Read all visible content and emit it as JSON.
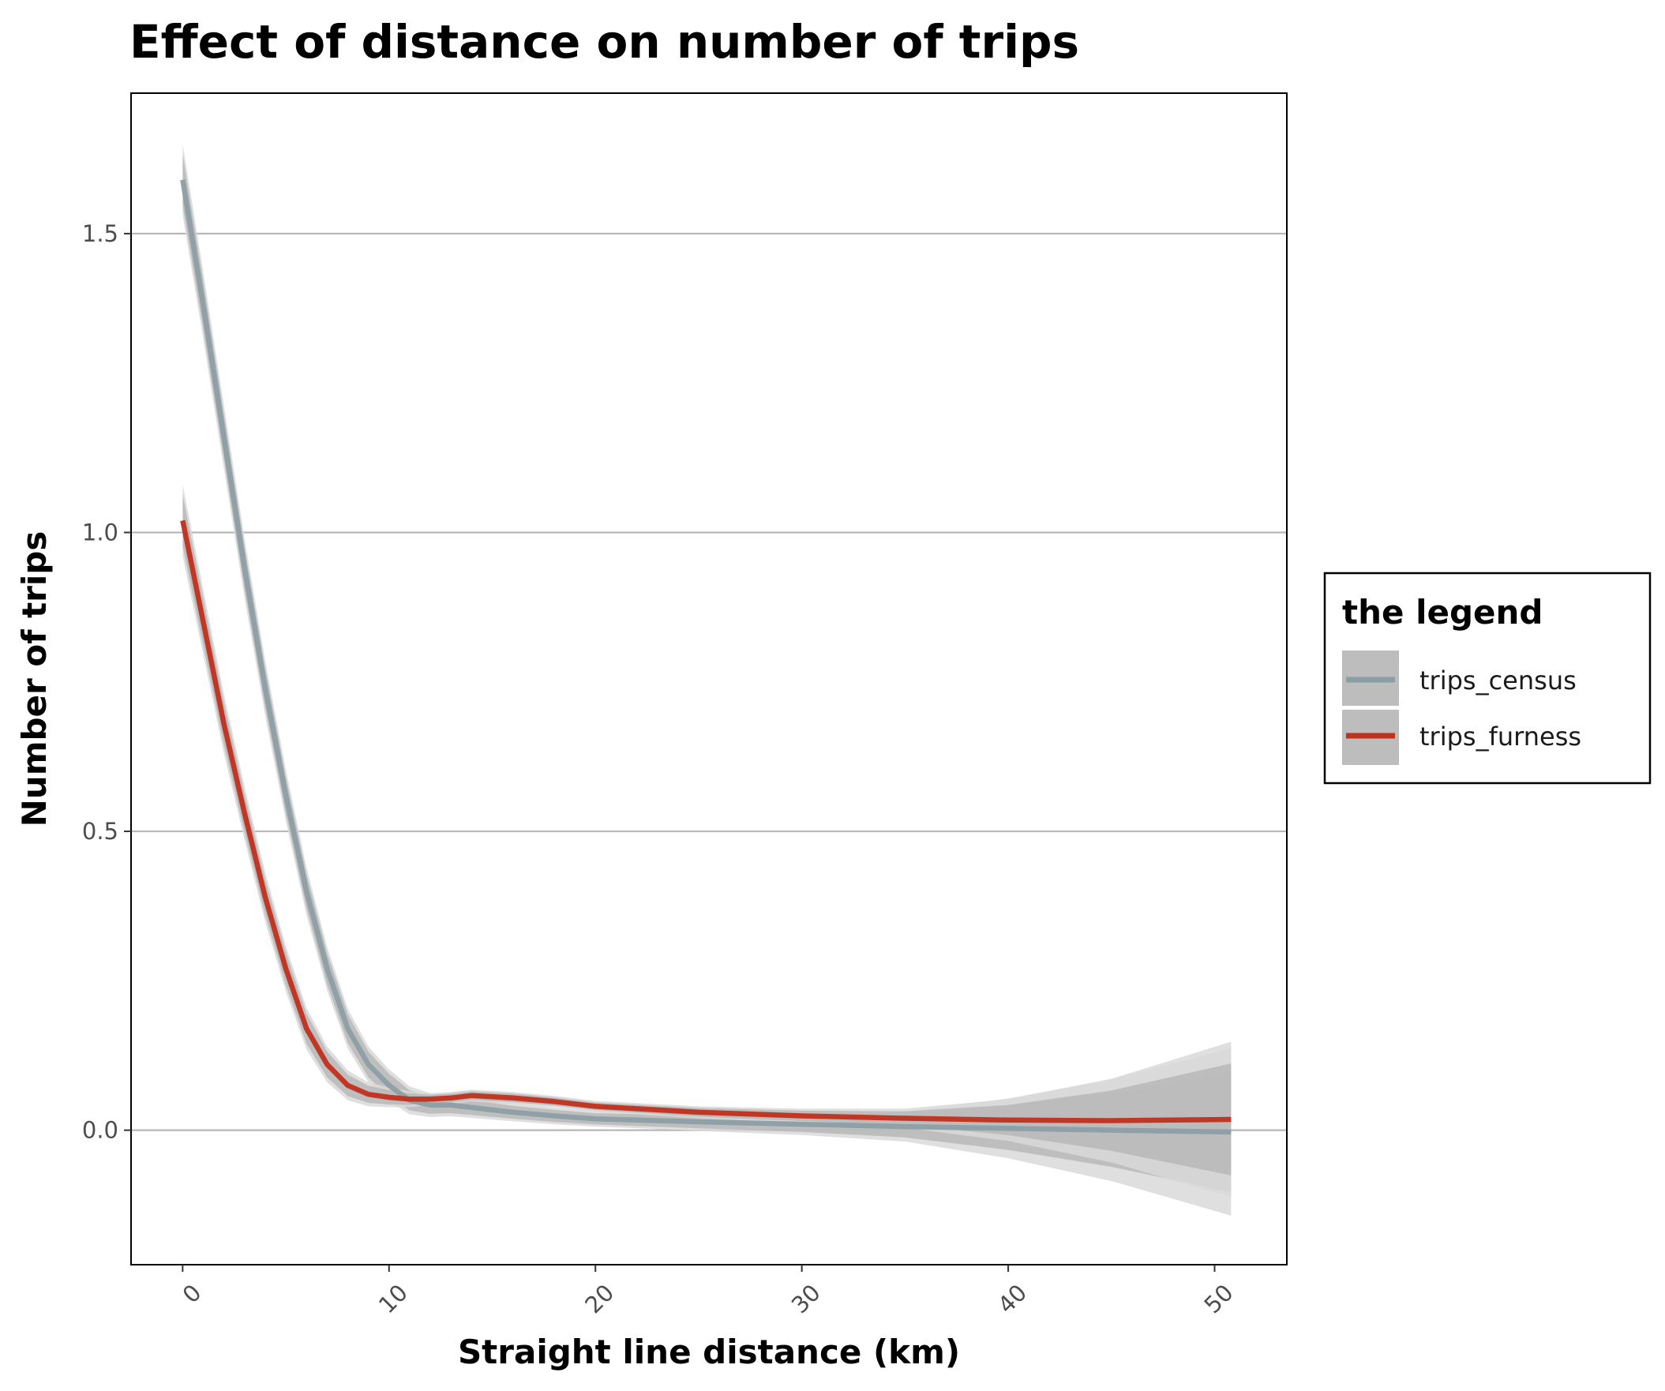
{
  "chart_data": {
    "type": "line",
    "title": "Effect of distance on number of trips",
    "xlabel": "Straight line distance (km)",
    "ylabel": "Number of trips",
    "xlim": [
      -2.5,
      53.5
    ],
    "ylim": [
      -0.225,
      1.735
    ],
    "x_ticks": [
      0,
      10,
      20,
      30,
      40,
      50
    ],
    "x_tick_labels": [
      "0",
      "10",
      "20",
      "30",
      "40",
      "50"
    ],
    "y_ticks": [
      0.0,
      0.5,
      1.0,
      1.5
    ],
    "y_tick_labels": [
      "0.0",
      "0.5",
      "1.0",
      "1.5"
    ],
    "grid": "horizontal major",
    "legend_title": "the legend",
    "legend_position": "right",
    "series": [
      {
        "name": "trips_census",
        "color": "#8c9ea5",
        "band_color": "#b3b3b3",
        "points": [
          [
            0,
            1.59
          ],
          [
            1,
            1.38
          ],
          [
            2,
            1.16
          ],
          [
            3,
            0.94
          ],
          [
            4,
            0.74
          ],
          [
            5,
            0.56
          ],
          [
            6,
            0.4
          ],
          [
            7,
            0.27
          ],
          [
            8,
            0.17
          ],
          [
            9,
            0.11
          ],
          [
            10,
            0.075
          ],
          [
            11,
            0.05
          ],
          [
            12,
            0.042
          ],
          [
            13,
            0.042
          ],
          [
            14,
            0.038
          ],
          [
            16,
            0.03
          ],
          [
            18,
            0.024
          ],
          [
            20,
            0.019
          ],
          [
            25,
            0.014
          ],
          [
            30,
            0.01
          ],
          [
            35,
            0.006
          ],
          [
            40,
            0.003
          ],
          [
            45,
            0.0
          ],
          [
            50.8,
            -0.003
          ]
        ],
        "band_half_width": [
          [
            0,
            0.06
          ],
          [
            3,
            0.05
          ],
          [
            6,
            0.04
          ],
          [
            9,
            0.03
          ],
          [
            12,
            0.02
          ],
          [
            16,
            0.015
          ],
          [
            20,
            0.013
          ],
          [
            25,
            0.015
          ],
          [
            30,
            0.018
          ],
          [
            35,
            0.025
          ],
          [
            40,
            0.05
          ],
          [
            45,
            0.085
          ],
          [
            50.8,
            0.14
          ]
        ]
      },
      {
        "name": "trips_furness",
        "color": "#c0301c",
        "band_color": "#b3b3b3",
        "points": [
          [
            0,
            1.02
          ],
          [
            1,
            0.85
          ],
          [
            2,
            0.68
          ],
          [
            3,
            0.53
          ],
          [
            4,
            0.39
          ],
          [
            5,
            0.27
          ],
          [
            6,
            0.17
          ],
          [
            7,
            0.11
          ],
          [
            8,
            0.075
          ],
          [
            9,
            0.06
          ],
          [
            10,
            0.055
          ],
          [
            11,
            0.052
          ],
          [
            12,
            0.052
          ],
          [
            13,
            0.054
          ],
          [
            14,
            0.058
          ],
          [
            16,
            0.054
          ],
          [
            18,
            0.048
          ],
          [
            20,
            0.04
          ],
          [
            25,
            0.03
          ],
          [
            30,
            0.024
          ],
          [
            35,
            0.02
          ],
          [
            40,
            0.017
          ],
          [
            45,
            0.016
          ],
          [
            50.8,
            0.018
          ]
        ],
        "band_half_width": [
          [
            0,
            0.06
          ],
          [
            3,
            0.045
          ],
          [
            6,
            0.035
          ],
          [
            9,
            0.02
          ],
          [
            12,
            0.01
          ],
          [
            16,
            0.01
          ],
          [
            20,
            0.009
          ],
          [
            25,
            0.01
          ],
          [
            30,
            0.012
          ],
          [
            35,
            0.016
          ],
          [
            40,
            0.035
          ],
          [
            45,
            0.07
          ],
          [
            50.8,
            0.13
          ]
        ]
      }
    ]
  }
}
